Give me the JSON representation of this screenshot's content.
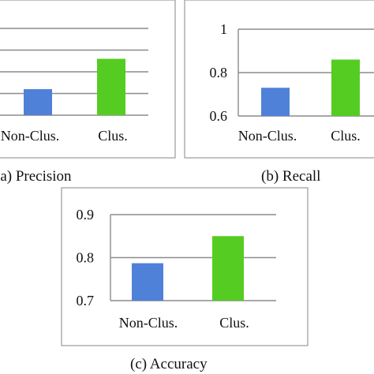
{
  "chart_data": [
    {
      "type": "bar",
      "caption": "(a) Precision",
      "categories": [
        "Non-Clus.",
        "Clus."
      ],
      "values": [
        0.72,
        0.86
      ],
      "ylim": [
        0.6,
        1.0
      ],
      "yticks": [
        0.6,
        0.7,
        0.8,
        0.9,
        1.0
      ],
      "ytick_labels": [],
      "colors": [
        "#4f81d9",
        "#55cc22"
      ],
      "grid": true
    },
    {
      "type": "bar",
      "caption": "(b) Recall",
      "categories": [
        "Non-Clus.",
        "Clus."
      ],
      "values": [
        0.73,
        0.86
      ],
      "ylim": [
        0.6,
        1.0
      ],
      "yticks": [
        0.6,
        0.8,
        1.0
      ],
      "ytick_labels": [
        "0.6",
        "0.8",
        "1"
      ],
      "colors": [
        "#4f81d9",
        "#55cc22"
      ],
      "grid": true
    },
    {
      "type": "bar",
      "caption": "(c) Accuracy",
      "categories": [
        "Non-Clus.",
        "Clus."
      ],
      "values": [
        0.787,
        0.85
      ],
      "ylim": [
        0.7,
        0.9
      ],
      "yticks": [
        0.7,
        0.8,
        0.9
      ],
      "ytick_labels": [
        "0.7",
        "0.8",
        "0.9"
      ],
      "colors": [
        "#4f81d9",
        "#55cc22"
      ],
      "grid": true
    }
  ]
}
